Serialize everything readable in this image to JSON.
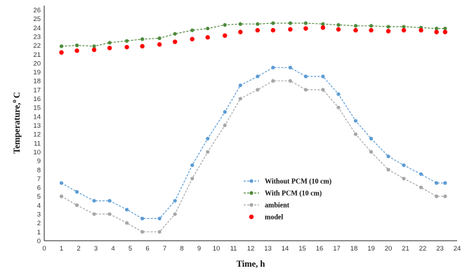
{
  "chart_data": {
    "type": "line",
    "xlabel": "Time, h",
    "ylabel_main": "Temperature,",
    "ylabel_super": "o",
    "ylabel_unit": "C",
    "xlim": [
      0,
      24
    ],
    "ylim": [
      0,
      26
    ],
    "x_ticks": [
      "0",
      "1",
      "2",
      "3",
      "4",
      "5",
      "6",
      "7",
      "8",
      "9",
      "10",
      "11",
      "12",
      "13",
      "14",
      "15",
      "16",
      "17",
      "18",
      "19",
      "20",
      "21",
      "22",
      "23",
      "24"
    ],
    "y_ticks": [
      "0",
      "1",
      "2",
      "3",
      "4",
      "5",
      "6",
      "7",
      "8",
      "9",
      "10",
      "11",
      "12",
      "13",
      "14",
      "15",
      "16",
      "17",
      "18",
      "19",
      "20",
      "21",
      "22",
      "23",
      "24",
      "25",
      "26"
    ],
    "legend_position": "center-right",
    "grid": false,
    "series": [
      {
        "name": "Without PCM (10 cm)",
        "color": "#5b9bd5",
        "style": "dashed-dot",
        "x": [
          1,
          1.9,
          2.9,
          3.8,
          4.8,
          5.7,
          6.7,
          7.6,
          8.6,
          9.5,
          10.5,
          11.4,
          12.4,
          13.3,
          14.3,
          15.2,
          16.2,
          17.1,
          18.1,
          19.0,
          20.0,
          20.9,
          21.9,
          22.8,
          23.3
        ],
        "values": [
          6.5,
          5.5,
          4.5,
          4.5,
          3.5,
          2.5,
          2.5,
          4.5,
          8.5,
          11.5,
          14.5,
          17.5,
          18.5,
          19.5,
          19.5,
          18.5,
          18.5,
          16.5,
          13.5,
          11.5,
          9.5,
          8.5,
          7.5,
          6.5,
          6.5
        ]
      },
      {
        "name": "With PCM (10 cm)",
        "color": "#4e8a3a",
        "style": "dashed-dot",
        "x": [
          1,
          1.9,
          2.9,
          3.8,
          4.8,
          5.7,
          6.7,
          7.6,
          8.6,
          9.5,
          10.5,
          11.4,
          12.4,
          13.3,
          14.3,
          15.2,
          16.2,
          17.1,
          18.1,
          19.0,
          20.0,
          20.9,
          21.9,
          22.8,
          23.3
        ],
        "values": [
          21.9,
          22.0,
          21.9,
          22.3,
          22.5,
          22.7,
          22.8,
          23.3,
          23.7,
          23.9,
          24.3,
          24.4,
          24.4,
          24.5,
          24.5,
          24.5,
          24.4,
          24.3,
          24.2,
          24.2,
          24.1,
          24.1,
          24.0,
          23.9,
          23.9
        ]
      },
      {
        "name": "ambient",
        "color": "#a6a6a6",
        "style": "dashed-dot",
        "x": [
          1,
          1.9,
          2.9,
          3.8,
          4.8,
          5.7,
          6.7,
          7.6,
          8.6,
          9.5,
          10.5,
          11.4,
          12.4,
          13.3,
          14.3,
          15.2,
          16.2,
          17.1,
          18.1,
          19.0,
          20.0,
          20.9,
          21.9,
          22.8,
          23.3
        ],
        "values": [
          5.0,
          4.0,
          3.0,
          3.0,
          2.0,
          1.0,
          1.0,
          3.0,
          7.0,
          10.0,
          13.0,
          16.0,
          17.0,
          18.0,
          18.0,
          17.0,
          17.0,
          15.0,
          12.0,
          10.0,
          8.0,
          7.0,
          6.0,
          5.0,
          5.0
        ]
      },
      {
        "name": "model",
        "color": "#ff0000",
        "style": "markers",
        "x": [
          1,
          1.9,
          2.9,
          3.8,
          4.8,
          5.7,
          6.7,
          7.6,
          8.6,
          9.5,
          10.5,
          11.4,
          12.4,
          13.3,
          14.3,
          15.2,
          16.2,
          17.1,
          18.1,
          19.0,
          20.0,
          20.9,
          21.9,
          22.8,
          23.3
        ],
        "values": [
          21.2,
          21.4,
          21.5,
          21.7,
          21.8,
          21.9,
          22.1,
          22.4,
          22.7,
          22.9,
          23.1,
          23.5,
          23.7,
          23.7,
          23.8,
          23.9,
          24.0,
          23.8,
          23.7,
          23.7,
          23.6,
          23.7,
          23.7,
          23.5,
          23.5
        ]
      }
    ]
  }
}
